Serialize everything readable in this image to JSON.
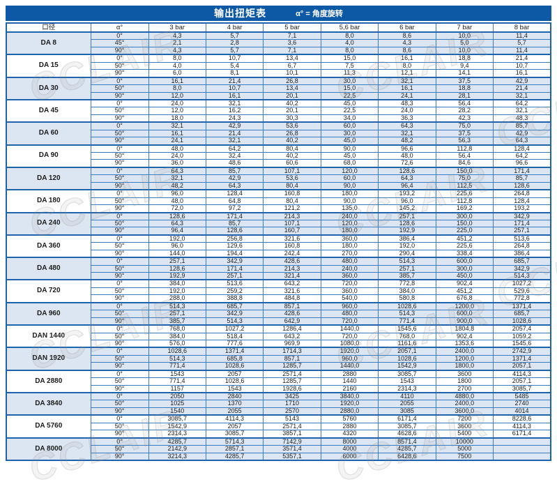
{
  "title": "输出扭矩表",
  "subtitle": "α° = 角度旋转",
  "watermark": "CCLAIR",
  "colors": {
    "title_bar_bg": "#0d59a6",
    "border_strong": "#1e63ab",
    "border_thin": "#3a7cc0",
    "shaded_bg": "#dce6f2",
    "text_color": "#1c1c1c"
  },
  "chart_data": {
    "type": "table",
    "title": "输出扭矩表",
    "subtitle": "α° = 角度旋转",
    "columns": [
      "口径",
      "α°",
      "3 bar",
      "4 bar",
      "5 bar",
      "5,6 bar",
      "6 bar",
      "7 bar",
      "8 bar"
    ],
    "groups": [
      {
        "model": "DA 8",
        "shaded": true,
        "rows": [
          {
            "angle": "0°",
            "values": [
              "4,3",
              "5,7",
              "7,1",
              "8,0",
              "8,6",
              "10,0",
              "11,4"
            ]
          },
          {
            "angle": "45°",
            "values": [
              "2,1",
              "2,8",
              "3,6",
              "4,0",
              "4,3",
              "5,0",
              "5,7"
            ]
          },
          {
            "angle": "90°",
            "values": [
              "4,3",
              "5,7",
              "7,1",
              "8,0",
              "8,6",
              "10,0",
              "11,4"
            ]
          }
        ]
      },
      {
        "model": "DA 15",
        "shaded": false,
        "rows": [
          {
            "angle": "0°",
            "values": [
              "8,0",
              "10,7",
              "13,4",
              "15,0",
              "16,1",
              "18,8",
              "21,4"
            ]
          },
          {
            "angle": "50°",
            "values": [
              "4,0",
              "5,4",
              "6,7",
              "7,5",
              "8,0",
              "9,4",
              "10,7"
            ]
          },
          {
            "angle": "90°",
            "values": [
              "6,0",
              "8,1",
              "10,1",
              "11,3",
              "12,1",
              "14,1",
              "16,1"
            ]
          }
        ]
      },
      {
        "model": "DA 30",
        "shaded": true,
        "rows": [
          {
            "angle": "0°",
            "values": [
              "16,1",
              "21,4",
              "26,8",
              "30,0",
              "32,1",
              "37,5",
              "42,9"
            ]
          },
          {
            "angle": "50°",
            "values": [
              "8,0",
              "10,7",
              "13,4",
              "15,0",
              "16,1",
              "18,8",
              "21,4"
            ]
          },
          {
            "angle": "90°",
            "values": [
              "12,0",
              "16,1",
              "20,1",
              "22,5",
              "24,1",
              "28,1",
              "32,1"
            ]
          }
        ]
      },
      {
        "model": "DA 45",
        "shaded": false,
        "rows": [
          {
            "angle": "0°",
            "values": [
              "24,0",
              "32,1",
              "40,2",
              "45,0",
              "48,3",
              "56,4",
              "64,2"
            ]
          },
          {
            "angle": "50°",
            "values": [
              "12,0",
              "16,2",
              "20,1",
              "22,5",
              "24,0",
              "28,2",
              "32,1"
            ]
          },
          {
            "angle": "90°",
            "values": [
              "18,0",
              "24,3",
              "30,3",
              "34,0",
              "36,3",
              "42,3",
              "48,3"
            ]
          }
        ]
      },
      {
        "model": "DA 60",
        "shaded": true,
        "rows": [
          {
            "angle": "0°",
            "values": [
              "32,1",
              "42,9",
              "53,6",
              "60,0",
              "64,3",
              "75,0",
              "85,7"
            ]
          },
          {
            "angle": "50°",
            "values": [
              "16,1",
              "21,4",
              "26,8",
              "30,0",
              "32,1",
              "37,5",
              "42,9"
            ]
          },
          {
            "angle": "90°",
            "values": [
              "24,1",
              "32,1",
              "40,2",
              "45,0",
              "48,2",
              "56,3",
              "64,3"
            ]
          }
        ]
      },
      {
        "model": "DA 90",
        "shaded": false,
        "rows": [
          {
            "angle": "0°",
            "values": [
              "48,0",
              "64,2",
              "80,4",
              "90,0",
              "96,6",
              "112,8",
              "128,4"
            ]
          },
          {
            "angle": "50°",
            "values": [
              "24,0",
              "32,4",
              "40,2",
              "45,0",
              "48,0",
              "56,4",
              "64,2"
            ]
          },
          {
            "angle": "90°",
            "values": [
              "36,0",
              "48,6",
              "60,6",
              "68,0",
              "72,6",
              "84,6",
              "96,6"
            ]
          }
        ]
      },
      {
        "model": "DA 120",
        "shaded": true,
        "rows": [
          {
            "angle": "0°",
            "values": [
              "64,3",
              "85,7",
              "107,1",
              "120,0",
              "128,6",
              "150,0",
              "171,4"
            ]
          },
          {
            "angle": "50°",
            "values": [
              "32,1",
              "42,9",
              "53,6",
              "60,0",
              "64,3",
              "75,0",
              "85,7"
            ]
          },
          {
            "angle": "90°",
            "values": [
              "48,2",
              "64,3",
              "80,4",
              "90,0",
              "96,4",
              "112,5",
              "128,6"
            ]
          }
        ]
      },
      {
        "model": "DA 180",
        "shaded": false,
        "rows": [
          {
            "angle": "0°",
            "values": [
              "96,0",
              "128,4",
              "160,8",
              "180,0",
              "193,2",
              "225,6",
              "264,8"
            ]
          },
          {
            "angle": "50°",
            "values": [
              "48,0",
              "64,8",
              "80,4",
              "90,0",
              "96,0",
              "112,8",
              "128,4"
            ]
          },
          {
            "angle": "90°",
            "values": [
              "72,0",
              "97,2",
              "121,2",
              "135,0",
              "145,2",
              "169,2",
              "193,2"
            ]
          }
        ]
      },
      {
        "model": "DA 240",
        "shaded": true,
        "rows": [
          {
            "angle": "0°",
            "values": [
              "128,6",
              "171,4",
              "214,3",
              "240,0",
              "257,1",
              "300,0",
              "342,9"
            ]
          },
          {
            "angle": "50°",
            "values": [
              "64,3",
              "85,7",
              "107,1",
              "120,0",
              "128,6",
              "150,0",
              "171,4"
            ]
          },
          {
            "angle": "90°",
            "values": [
              "96,4",
              "128,6",
              "160,7",
              "180,0",
              "192,9",
              "225,0",
              "257,1"
            ]
          }
        ]
      },
      {
        "model": "DA 360",
        "shaded": false,
        "rows": [
          {
            "angle": "0°",
            "values": [
              "192,0",
              "256,8",
              "321,6",
              "360,0",
              "386,4",
              "451,2",
              "513,6"
            ]
          },
          {
            "angle": "50°",
            "values": [
              "96,0",
              "129,6",
              "160,8",
              "180,0",
              "192,0",
              "225,6",
              "264,8"
            ]
          },
          {
            "angle": "90°",
            "values": [
              "144,0",
              "194,4",
              "242,4",
              "270,0",
              "290,4",
              "338,4",
              "386,4"
            ]
          }
        ]
      },
      {
        "model": "DA 480",
        "shaded": true,
        "rows": [
          {
            "angle": "0°",
            "values": [
              "257,1",
              "342,9",
              "428,6",
              "480,0",
              "514,3",
              "600,0",
              "685,7"
            ]
          },
          {
            "angle": "50°",
            "values": [
              "128,6",
              "171,4",
              "214,3",
              "240,0",
              "257,1",
              "300,0",
              "342,9"
            ]
          },
          {
            "angle": "90°",
            "values": [
              "192,9",
              "257,1",
              "321,4",
              "360,0",
              "385,7",
              "450,0",
              "514,3"
            ]
          }
        ]
      },
      {
        "model": "DA 720",
        "shaded": false,
        "rows": [
          {
            "angle": "0°",
            "values": [
              "384,0",
              "513,6",
              "643,2",
              "720,0",
              "772,8",
              "902,4",
              "1027,2"
            ]
          },
          {
            "angle": "50°",
            "values": [
              "192,0",
              "259,2",
              "321,6",
              "360,0",
              "384,0",
              "451,2",
              "529,6"
            ]
          },
          {
            "angle": "90°",
            "values": [
              "288,0",
              "388,8",
              "484,8",
              "540,0",
              "580,8",
              "676,8",
              "772,8"
            ]
          }
        ]
      },
      {
        "model": "DA 960",
        "shaded": true,
        "rows": [
          {
            "angle": "0°",
            "values": [
              "514,3",
              "685,7",
              "857,1",
              "960,0",
              "1028,6",
              "1200,0",
              "1371,4"
            ]
          },
          {
            "angle": "50°",
            "values": [
              "257,1",
              "342,9",
              "428,6",
              "480,0",
              "514,3",
              "600,0",
              "685,7"
            ]
          },
          {
            "angle": "90°",
            "values": [
              "385,7",
              "514,3",
              "642,9",
              "720,0",
              "771,4",
              "900,0",
              "1028,6"
            ]
          }
        ]
      },
      {
        "model": "DAN 1440",
        "shaded": false,
        "rows": [
          {
            "angle": "0°",
            "values": [
              "768,0",
              "1027,2",
              "1286,4",
              "1440,0",
              "1545,6",
              "1804,8",
              "2057,4"
            ]
          },
          {
            "angle": "50°",
            "values": [
              "384,0",
              "518,4",
              "643,2",
              "720,0",
              "768,0",
              "902,4",
              "1059,2"
            ]
          },
          {
            "angle": "90°",
            "values": [
              "576,0",
              "777,6",
              "969,9",
              "1080,0",
              "1161,6",
              "1353,6",
              "1545,6"
            ]
          }
        ]
      },
      {
        "model": "DAN 1920",
        "shaded": true,
        "rows": [
          {
            "angle": "0°",
            "values": [
              "1028,6",
              "1371,4",
              "1714,3",
              "1920,0",
              "2057,1",
              "2400,0",
              "2742,9"
            ]
          },
          {
            "angle": "50°",
            "values": [
              "514,3",
              "685,8",
              "857,1",
              "960,0",
              "1028,6",
              "1200,0",
              "1371,4"
            ]
          },
          {
            "angle": "90°",
            "values": [
              "771,4",
              "1028,6",
              "1285,7",
              "1440,0",
              "1542,9",
              "1800,0",
              "2057,1"
            ]
          }
        ]
      },
      {
        "model": "DA 2880",
        "shaded": false,
        "rows": [
          {
            "angle": "0°",
            "values": [
              "1543",
              "2057",
              "2571,4",
              "2880",
              "3085,7",
              "3600",
              "4114,3"
            ]
          },
          {
            "angle": "50°",
            "values": [
              "771,4",
              "1028,6",
              "1285,7",
              "1440",
              "1543",
              "1800",
              "2057,1"
            ]
          },
          {
            "angle": "90°",
            "values": [
              "1157",
              "1543",
              "1928,6",
              "2160",
              "2314,3",
              "2700",
              "3085,7"
            ]
          }
        ]
      },
      {
        "model": "DA 3840",
        "shaded": true,
        "rows": [
          {
            "angle": "0°",
            "values": [
              "2050",
              "2840",
              "3425",
              "3840,0",
              "4110",
              "4880,0",
              "5485"
            ]
          },
          {
            "angle": "50°",
            "values": [
              "1025",
              "1370",
              "1710",
              "1920,0",
              "2055",
              "2400,0",
              "2740"
            ]
          },
          {
            "angle": "90°",
            "values": [
              "1540",
              "2055",
              "2570",
              "2880,0",
              "3085",
              "3600,0",
              "4014"
            ]
          }
        ]
      },
      {
        "model": "DA 5760",
        "shaded": false,
        "rows": [
          {
            "angle": "0°",
            "values": [
              "3085,7",
              "4114,3",
              "5143",
              "5760",
              "6171,4",
              "7200",
              "8228,6"
            ]
          },
          {
            "angle": "50°",
            "values": [
              "1542,9",
              "2057",
              "2571,4",
              "2880",
              "3085,7",
              "3600",
              "4114,3"
            ]
          },
          {
            "angle": "90°",
            "values": [
              "2314,3",
              "3085,7",
              "3857,1",
              "4320",
              "4628,6",
              "5400",
              "6171,4"
            ]
          }
        ]
      },
      {
        "model": "DA 8000",
        "shaded": true,
        "rows": [
          {
            "angle": "0°",
            "values": [
              "4285,7",
              "5714,3",
              "7142,9",
              "8000",
              "8571,4",
              "10000",
              ""
            ]
          },
          {
            "angle": "50°",
            "values": [
              "2142,9",
              "2857,1",
              "3571,4",
              "4000",
              "4285,7",
              "5000",
              ""
            ]
          },
          {
            "angle": "90°",
            "values": [
              "3214,3",
              "4285,7",
              "5357,1",
              "6000",
              "6428,6",
              "7500",
              ""
            ]
          }
        ]
      }
    ]
  }
}
